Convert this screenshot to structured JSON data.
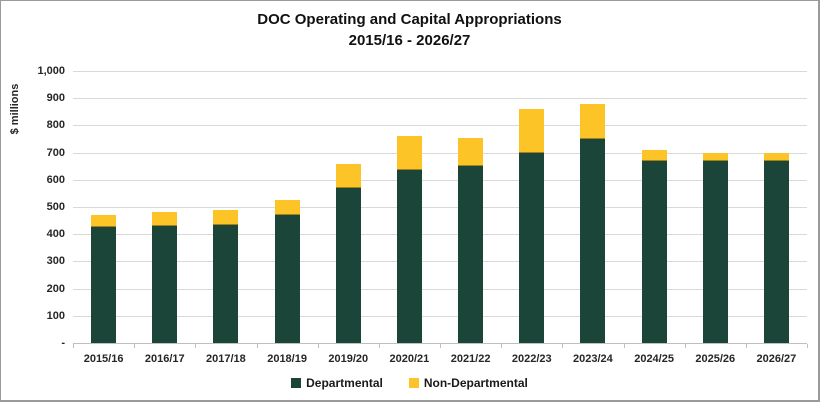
{
  "chart_data": {
    "type": "bar",
    "stacked": true,
    "title": "DOC Operating and Capital Appropriations",
    "subtitle": "2015/16 - 2026/27",
    "ylabel": "$ millions",
    "categories": [
      "2015/16",
      "2016/17",
      "2017/18",
      "2018/19",
      "2019/20",
      "2020/21",
      "2021/22",
      "2022/23",
      "2023/24",
      "2024/25",
      "2025/26",
      "2026/27"
    ],
    "series": [
      {
        "name": "Departmental",
        "color": "#1A4538",
        "values": [
          425,
          430,
          435,
          470,
          570,
          635,
          650,
          700,
          750,
          670,
          670,
          670
        ]
      },
      {
        "name": "Non-Departmental",
        "color": "#FDC428",
        "values": [
          45,
          50,
          55,
          55,
          90,
          125,
          105,
          160,
          130,
          40,
          30,
          30
        ]
      }
    ],
    "totals": [
      470,
      480,
      490,
      525,
      660,
      760,
      755,
      860,
      880,
      710,
      700,
      700
    ],
    "ylim": [
      0,
      1000
    ],
    "ytick_values": [
      0,
      100,
      200,
      300,
      400,
      500,
      600,
      700,
      800,
      900,
      1000
    ],
    "ytick_labels": [
      "-",
      "100",
      "200",
      "300",
      "400",
      "500",
      "600",
      "700",
      "800",
      "900",
      "1,000"
    ],
    "grid": true,
    "legend_position": "bottom"
  },
  "colors": {
    "gridline": "#d9d9d9",
    "axis": "#bfbfbf",
    "tick_text": "#262626",
    "title_text": "#111111",
    "frame_border": "#9a9a9a"
  }
}
